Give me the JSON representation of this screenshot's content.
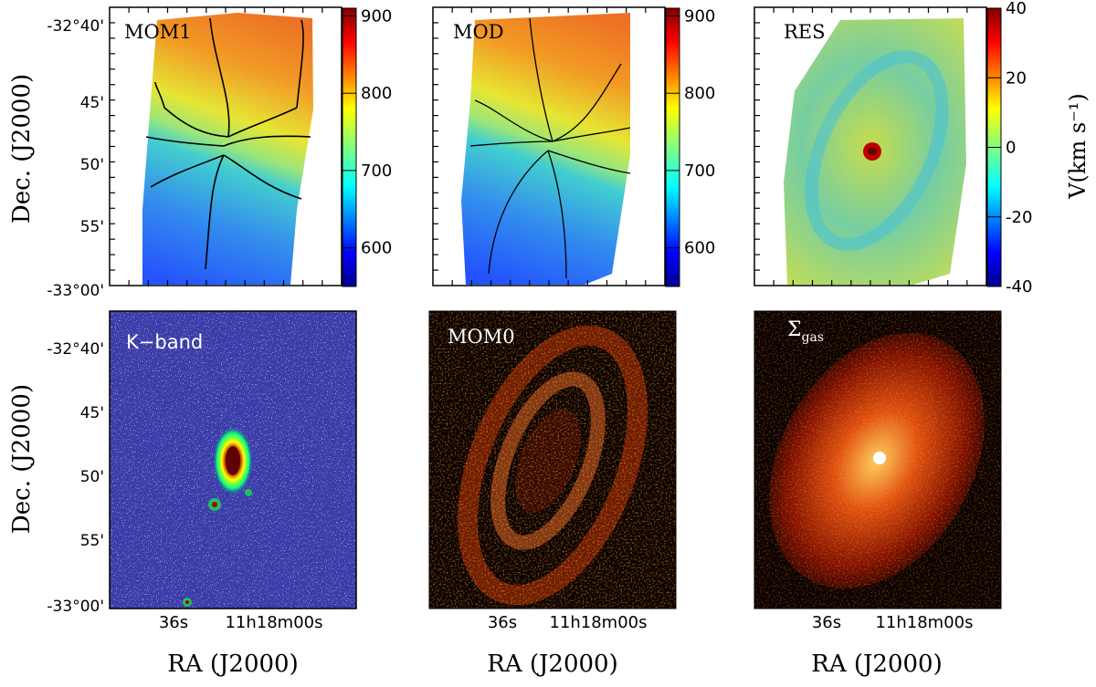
{
  "figure": {
    "ylabel": "Dec. (J2000)",
    "xlabel": "RA (J2000)",
    "dec_ticks": [
      "-32°40'",
      "45'",
      "50'",
      "55'",
      "-33°00'"
    ],
    "ra_ticks": [
      "36s",
      "11h18m00s"
    ]
  },
  "chart_data": [
    {
      "type": "heatmap",
      "panel": "MOM1",
      "label": "MOM1",
      "colorbar": {
        "min": 550,
        "max": 910,
        "ticks": [
          600,
          700,
          800,
          900
        ]
      }
    },
    {
      "type": "heatmap",
      "panel": "MOD",
      "label": "MOD",
      "colorbar": {
        "min": 550,
        "max": 910,
        "ticks": [
          600,
          700,
          800,
          900
        ]
      }
    },
    {
      "type": "heatmap",
      "panel": "RES",
      "label": "RES",
      "colorbar": {
        "min": -40,
        "max": 40,
        "ticks": [
          40,
          20,
          0,
          -20,
          -40
        ],
        "label": "V(km s⁻¹)"
      }
    },
    {
      "type": "heatmap",
      "panel": "K-band",
      "label": "K−band"
    },
    {
      "type": "heatmap",
      "panel": "MOM0",
      "label": "MOM0"
    },
    {
      "type": "heatmap",
      "panel": "Sigma_gas",
      "label": "Σ",
      "label_sub": "gas"
    }
  ],
  "colors": {
    "velocity_cmap": "jet",
    "intensity_cmap": "hot",
    "kband_bg": "#3a3aa8"
  }
}
